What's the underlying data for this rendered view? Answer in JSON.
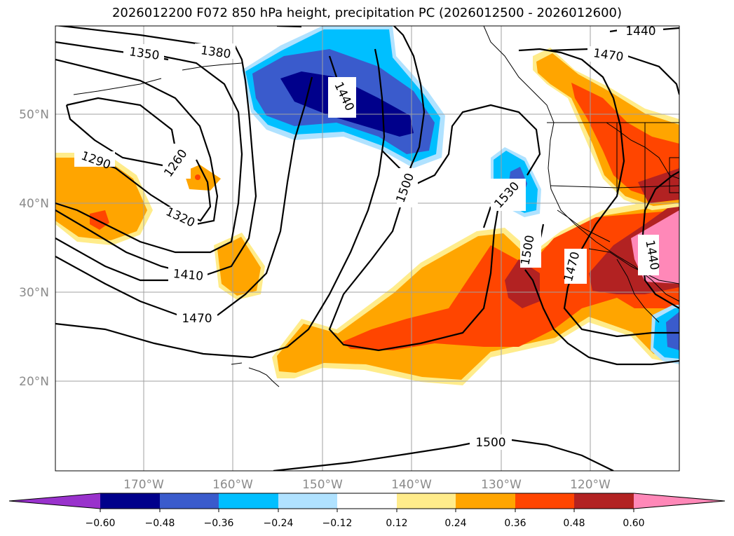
{
  "title": "2026012200 F072 850 hPa height, precipitation PC (2026012500 - 2026012600)",
  "map": {
    "lon_ticks": [
      "170°W",
      "160°W",
      "150°W",
      "140°W",
      "130°W",
      "120°W"
    ],
    "lat_ticks": [
      "50°N",
      "40°N",
      "30°N",
      "20°N"
    ],
    "contour_labels": [
      "1440",
      "1470",
      "1350",
      "1380",
      "1440",
      "1290",
      "1260",
      "1320",
      "1410",
      "1470",
      "1500",
      "1530",
      "1500",
      "1470",
      "1440",
      "1500"
    ]
  },
  "colorbar": {
    "colors": [
      "#9932cc",
      "#00008b",
      "#3a5bcc",
      "#00bfff",
      "#b0e2ff",
      "#ffffff",
      "#ffec8b",
      "#ffa500",
      "#ff4500",
      "#b22222",
      "#ff88b8"
    ],
    "ticks": [
      "−0.60",
      "−0.48",
      "−0.36",
      "−0.24",
      "−0.12",
      "0.12",
      "0.24",
      "0.36",
      "0.48",
      "0.60"
    ]
  }
}
